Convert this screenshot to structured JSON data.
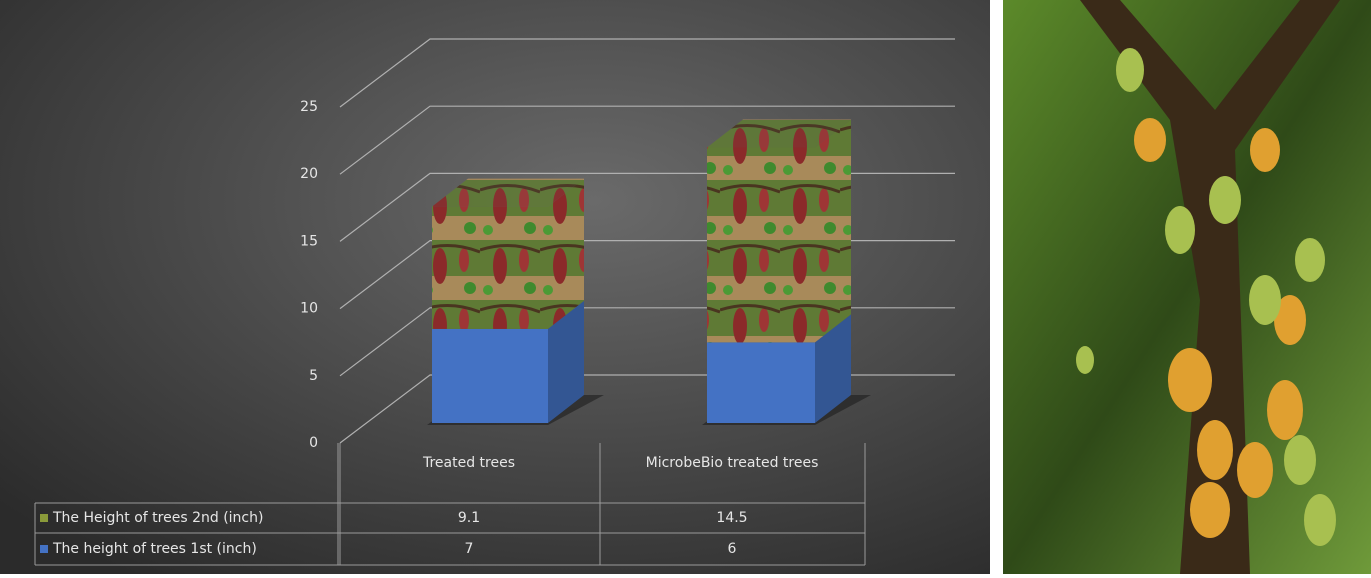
{
  "chart_data": {
    "type": "bar3d_stacked",
    "categories": [
      "Treated trees",
      "MicrobeBio treated trees"
    ],
    "series": [
      {
        "name": "The height of trees 1st (inch)",
        "color": "#4472c4",
        "values": [
          7,
          6
        ]
      },
      {
        "name": "The Height of trees 2nd (inch)",
        "color": "#8a9a3a",
        "values": [
          9.1,
          14.5
        ]
      }
    ],
    "ylim": [
      0,
      25
    ],
    "yticks": [
      0,
      5,
      10,
      15,
      20,
      25
    ],
    "grid": true
  }
}
